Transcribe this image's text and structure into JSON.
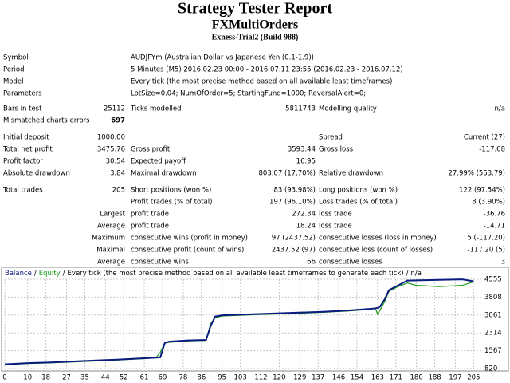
{
  "header": {
    "title": "Strategy Tester Report",
    "subtitle": "FXMultiOrders",
    "server": "Exness-Trial2 (Build 988)"
  },
  "info": [
    {
      "label": "Symbol",
      "value": "AUDJPYm (Australian Dollar vs Japanese Yen (0.1-1.9))"
    },
    {
      "label": "Period",
      "value": "5 Minutes (M5) 2016.02.23 00:00 - 2016.07.11 23:55 (2016.02.23 - 2016.07.12)"
    },
    {
      "label": "Model",
      "value": "Every tick (the most precise method based on all available least timeframes)"
    },
    {
      "label": "Parameters",
      "value": "LotSize=0.04; NumOfOrder=5; StartingFund=1000; ReversalAlert=0;"
    }
  ],
  "error_color": "#e00000",
  "stats": [
    {
      "label1": "Bars in test",
      "value1": "25112",
      "label2": "Ticks modelled",
      "value2": "5811743",
      "label3": "Modelling quality",
      "value3": "n/a"
    },
    {
      "label1": "Mismatched charts errors",
      "value1": "697",
      "highlight": true
    },
    {
      "label1": "Initial deposit",
      "value1": "1000.00",
      "label3": "Spread",
      "value3": "Current (27)"
    },
    {
      "label1": "Total net profit",
      "value1": "3475.76",
      "label2": "Gross profit",
      "value2": "3593.44",
      "label3": "Gross loss",
      "value3": "-117.68"
    },
    {
      "label1": "Profit factor",
      "value1": "30.54",
      "label2": "Expected payoff",
      "value2": "16.95"
    },
    {
      "label1": "Absolute drawdown",
      "value1": "3.84",
      "label2": "Maximal drawdown",
      "value2": "803.07 (17.70%)",
      "label3": "Relative drawdown",
      "value3": "27.99% (553.79)"
    },
    {
      "label1": "Total trades",
      "value1": "205",
      "label2": "Short positions (won %)",
      "value2": "83 (93.98%)",
      "label3": "Long positions (won %)",
      "value3": "122 (97.54%)"
    },
    {
      "label2": "Profit trades (% of total)",
      "value2": "197 (96.10%)",
      "label3": "Loss trades (% of total)",
      "value3": "8 (3.90%)"
    },
    {
      "value1": "Largest",
      "label2": "profit trade",
      "value2": "272.34",
      "label3": "loss trade",
      "value3": "-36.76"
    },
    {
      "value1": "Average",
      "label2": "profit trade",
      "value2": "18.24",
      "label3": "loss trade",
      "value3": "-14.71"
    },
    {
      "value1": "Maximum",
      "label2": "consecutive wins (profit in money)",
      "value2": "97 (2437.52)",
      "label3": "consecutive losses (loss in money)",
      "value3": "5 (-117.20)"
    },
    {
      "value1": "Maximal",
      "label2": "consecutive profit (count of wins)",
      "value2": "2437.52 (97)",
      "label3": "consecutive loss (count of losses)",
      "value3": "-117.20 (5)"
    },
    {
      "value1": "Average",
      "label2": "consecutive wins",
      "value2": "66",
      "label3": "consecutive losses",
      "value3": "3"
    }
  ],
  "chart_data": {
    "type": "line",
    "legend_separator": "/",
    "model": "Every tick (the most precise method based on all available least timeframes to generate each tick)",
    "quality": "n/a",
    "x": [
      0,
      10,
      20,
      30,
      40,
      50,
      60,
      66,
      68,
      70,
      72,
      80,
      88,
      90,
      92,
      95,
      110,
      125,
      140,
      150,
      160,
      162,
      163,
      164,
      166,
      168,
      172,
      176,
      180,
      190,
      200,
      205
    ],
    "series": [
      {
        "name": "Balance",
        "color": "#0a1a80",
        "values": [
          1000,
          1050,
          1080,
          1120,
          1160,
          1200,
          1250,
          1280,
          1290,
          1900,
          1950,
          2000,
          2020,
          2600,
          3000,
          3050,
          3100,
          3150,
          3200,
          3250,
          3320,
          3340,
          3360,
          3400,
          3700,
          4100,
          4300,
          4500,
          4510,
          4530,
          4550,
          4470
        ]
      },
      {
        "name": "Equity",
        "color": "#1a9a1a",
        "values": [
          980,
          1030,
          1060,
          1100,
          1140,
          1180,
          1230,
          1270,
          1500,
          1900,
          1920,
          1980,
          2000,
          2700,
          2950,
          3020,
          3080,
          3120,
          3180,
          3230,
          3300,
          3350,
          3100,
          3250,
          3600,
          4050,
          4250,
          4400,
          4300,
          4250,
          4300,
          4450
        ]
      }
    ],
    "xlim": [
      0,
      208
    ],
    "xticks": [
      0,
      10,
      18,
      27,
      35,
      44,
      52,
      61,
      69,
      78,
      86,
      95,
      103,
      112,
      120,
      129,
      137,
      146,
      154,
      163,
      171,
      180,
      188,
      197,
      205
    ],
    "ylim": [
      820,
      4555
    ],
    "yticks": [
      820,
      1567,
      2314,
      3061,
      3808,
      4555
    ],
    "grid": true
  }
}
